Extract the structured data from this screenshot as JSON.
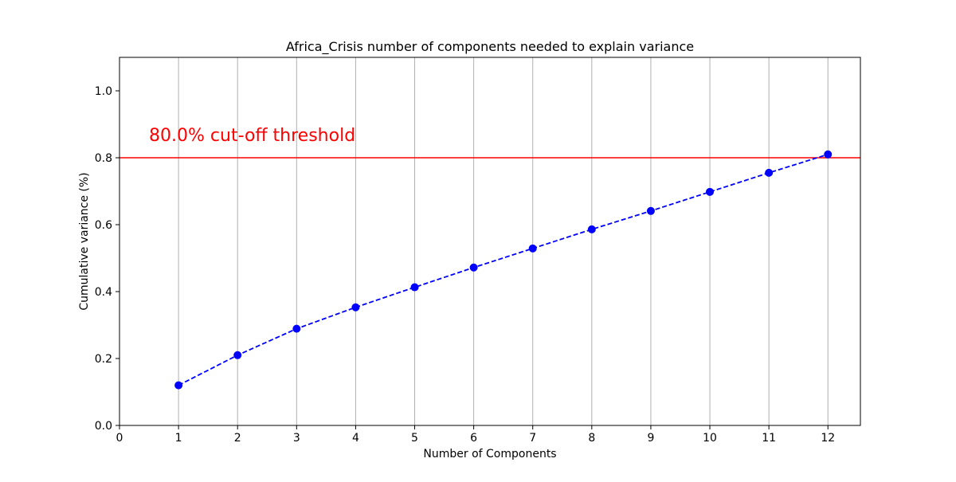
{
  "chart_data": {
    "type": "line",
    "title": "Africa_Crisis number of components needed to explain variance",
    "xlabel": "Number of Components",
    "ylabel": "Cumulative variance (%)",
    "xlim": [
      0,
      12.55
    ],
    "ylim": [
      0,
      1.1
    ],
    "xticks": [
      "0",
      "1",
      "2",
      "3",
      "4",
      "5",
      "6",
      "7",
      "8",
      "9",
      "10",
      "11",
      "12"
    ],
    "yticks": [
      "0.0",
      "0.2",
      "0.4",
      "0.6",
      "0.8",
      "1.0"
    ],
    "grid": "x-axis vertical lines",
    "series": [
      {
        "x": [
          1,
          2,
          3,
          4,
          5,
          6,
          7,
          8,
          9,
          10,
          11,
          12
        ],
        "y": [
          0.12,
          0.21,
          0.289,
          0.353,
          0.413,
          0.472,
          0.529,
          0.586,
          0.641,
          0.698,
          0.755,
          0.81
        ],
        "color": "#0000ff",
        "linestyle": "dashed",
        "marker": "circle"
      }
    ],
    "threshold": {
      "value": 0.8,
      "label": "80.0% cut-off threshold",
      "color": "#ff0000"
    }
  }
}
